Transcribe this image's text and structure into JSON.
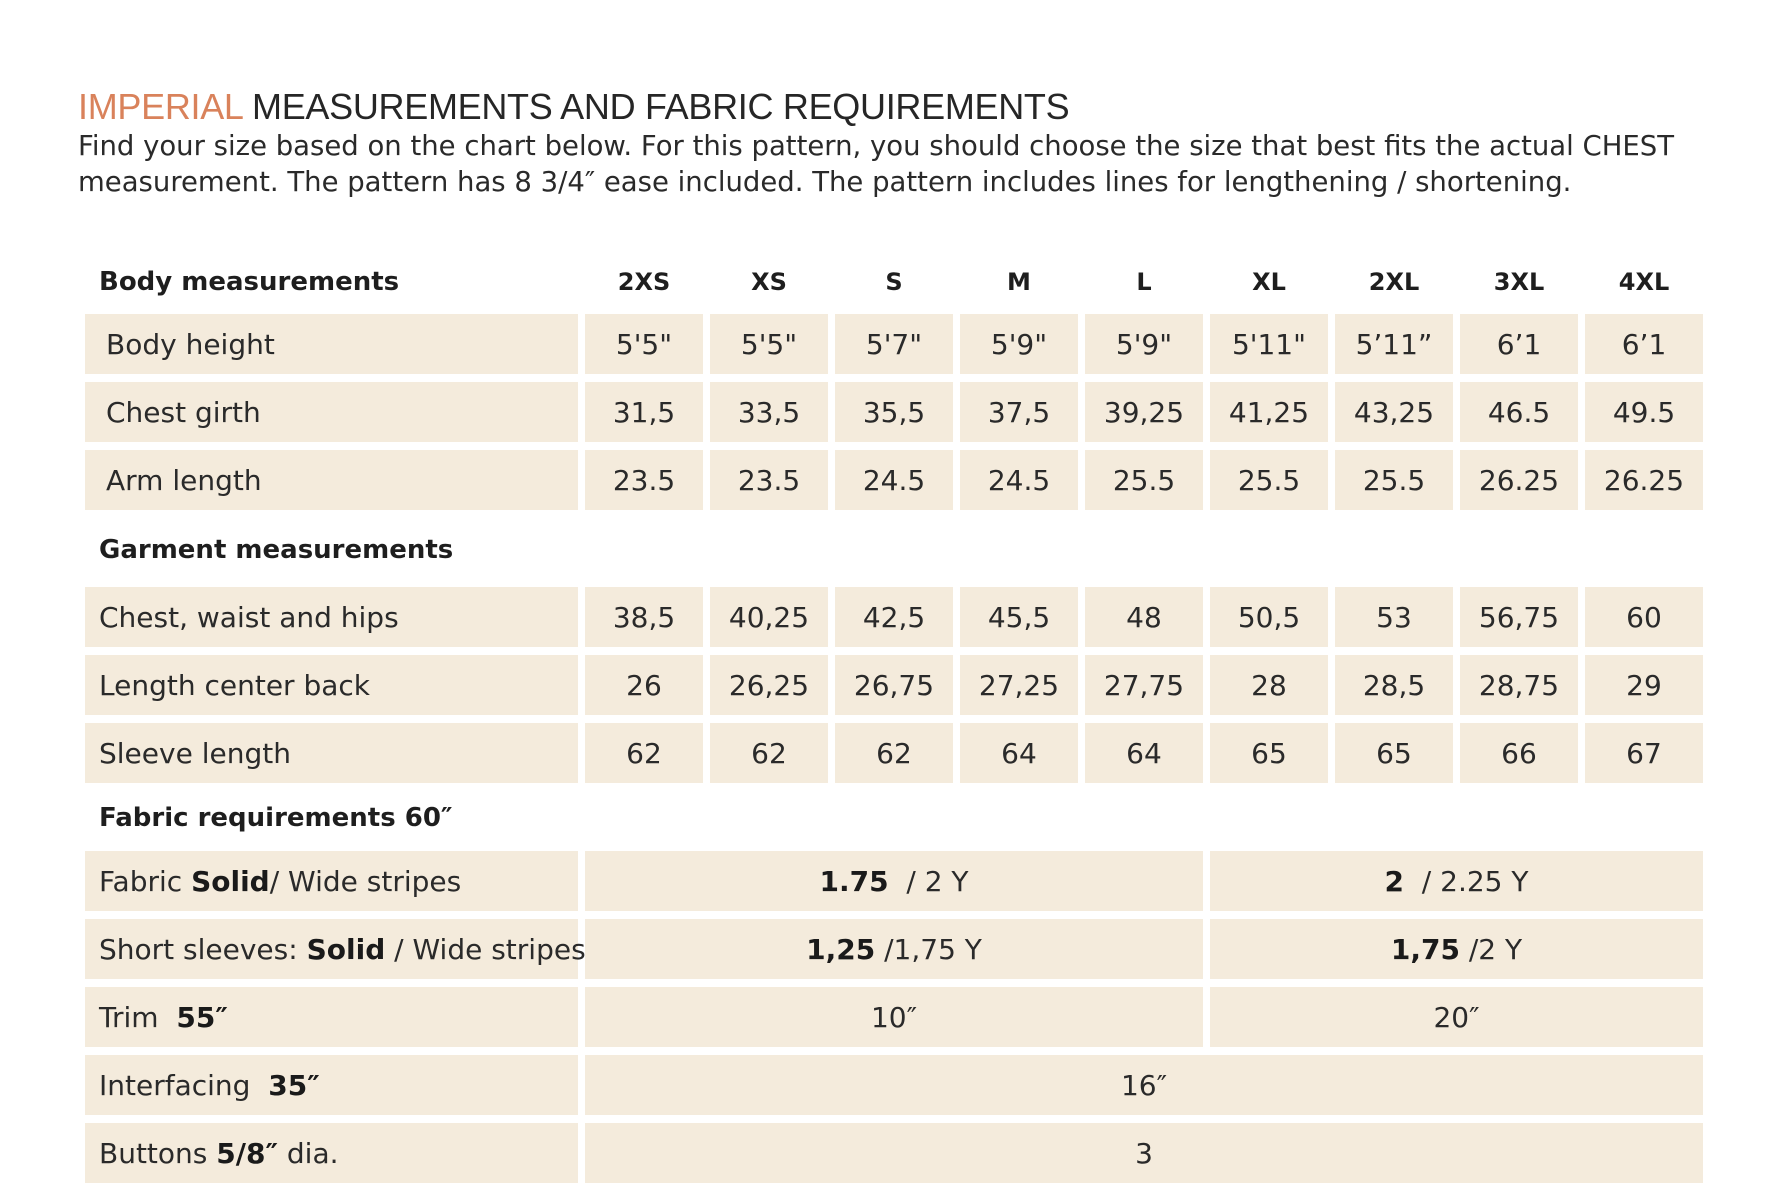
{
  "title": {
    "accent": "IMPERIAL",
    "rest": " MEASUREMENTS AND FABRIC REQUIREMENTS"
  },
  "intro": {
    "line1": "Find your size based on the chart below. For this pattern, you should choose the size that best fits the actual CHEST",
    "line2": "measurement. The pattern has 8 3/4″ ease included. The pattern includes lines for lengthening / shortening."
  },
  "sizes": [
    "2XS",
    "XS",
    "S",
    "M",
    "L",
    "XL",
    "2XL",
    "3XL",
    "4XL"
  ],
  "body": {
    "header": "Body measurements",
    "rows": [
      {
        "label": "Body height",
        "values": [
          "5'5\"",
          "5'5\"",
          "5'7\"",
          "5'9\"",
          "5'9\"",
          "5'11\"",
          "5’11”",
          "6’1",
          "6’1"
        ]
      },
      {
        "label": "Chest girth",
        "values": [
          "31,5",
          "33,5",
          "35,5",
          "37,5",
          "39,25",
          "41,25",
          "43,25",
          "46.5",
          "49.5"
        ]
      },
      {
        "label": "Arm length",
        "values": [
          "23.5",
          "23.5",
          "24.5",
          "24.5",
          "25.5",
          "25.5",
          "25.5",
          "26.25",
          "26.25"
        ]
      }
    ]
  },
  "garment": {
    "header": "Garment measurements",
    "rows": [
      {
        "label": "Chest, waist and hips",
        "values": [
          "38,5",
          "40,25",
          "42,5",
          "45,5",
          "48",
          "50,5",
          "53",
          "56,75",
          "60"
        ]
      },
      {
        "label": "Length center back",
        "values": [
          "26",
          "26,25",
          "26,75",
          "27,25",
          "27,75",
          "28",
          "28,5",
          "28,75",
          "29"
        ]
      },
      {
        "label": "Sleeve length",
        "values": [
          "62",
          "62",
          "62",
          "64",
          "64",
          "65",
          "65",
          "66",
          "67"
        ]
      }
    ]
  },
  "fabric": {
    "header": "Fabric requirements 60″",
    "fabric_solid": {
      "label_a": "Fabric ",
      "label_b": "Solid",
      "label_c": " / Wide stripes",
      "v1_bold": "1.75",
      "v1_rest": "  / 2 Y",
      "v2_bold": "2",
      "v2_rest": "  / 2.25 Y"
    },
    "short_sleeves": {
      "label_a": "Short sleeves: ",
      "label_b": "Solid",
      "label_c": " / Wide stripes",
      "v1_bold": "1,25",
      "v1_rest": " /1,75 Y",
      "v2_bold": "1,75",
      "v2_rest": " /2 Y"
    },
    "trim": {
      "label_a": "Trim  ",
      "label_b": "55″",
      "v1": "10″",
      "v2": "20″"
    },
    "interfacing": {
      "label_a": "Interfacing  ",
      "label_b": "35″",
      "v": "16″"
    },
    "buttons": {
      "label_a": "Buttons ",
      "label_b": "5/8″",
      "label_c": " dia.",
      "v": "3"
    }
  }
}
